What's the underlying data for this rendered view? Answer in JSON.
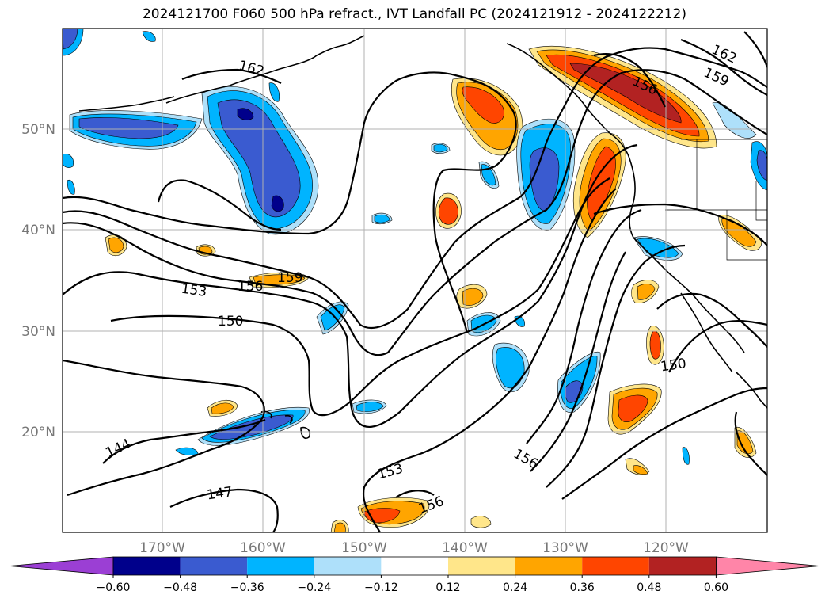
{
  "title": "2024121700 F060 500 hPa refract., IVT Landfall PC (2024121912 - 2024122212)",
  "lat_labels": [
    "50°N",
    "40°N",
    "30°N",
    "20°N"
  ],
  "lon_labels": [
    "170°W",
    "160°W",
    "150°W",
    "140°W",
    "130°W",
    "120°W"
  ],
  "contour_labels": [
    "162",
    "162",
    "159",
    "156",
    "159",
    "156",
    "153",
    "150",
    "150",
    "144",
    "147",
    "153",
    "156",
    "156"
  ],
  "colorbar": {
    "tick_labels": [
      "−0.60",
      "−0.48",
      "−0.36",
      "−0.24",
      "−0.12",
      "0.12",
      "0.24",
      "0.36",
      "0.48",
      "0.60"
    ],
    "colors": [
      "#9b3fd4",
      "#00008b",
      "#3a5bd0",
      "#00b4ff",
      "#aee0fa",
      "#ffffff",
      "#ffe68a",
      "#ffa500",
      "#ff4500",
      "#b22222",
      "#ff85a8"
    ]
  },
  "colors": {
    "neg_strong": "#00008b",
    "neg_mid": "#3a5bd0",
    "neg_light": "#00b4ff",
    "neg_pale": "#aee0fa",
    "pos_pale": "#ffe68a",
    "pos_light": "#ffa500",
    "pos_mid": "#ff4500",
    "pos_strong": "#b22222"
  }
}
